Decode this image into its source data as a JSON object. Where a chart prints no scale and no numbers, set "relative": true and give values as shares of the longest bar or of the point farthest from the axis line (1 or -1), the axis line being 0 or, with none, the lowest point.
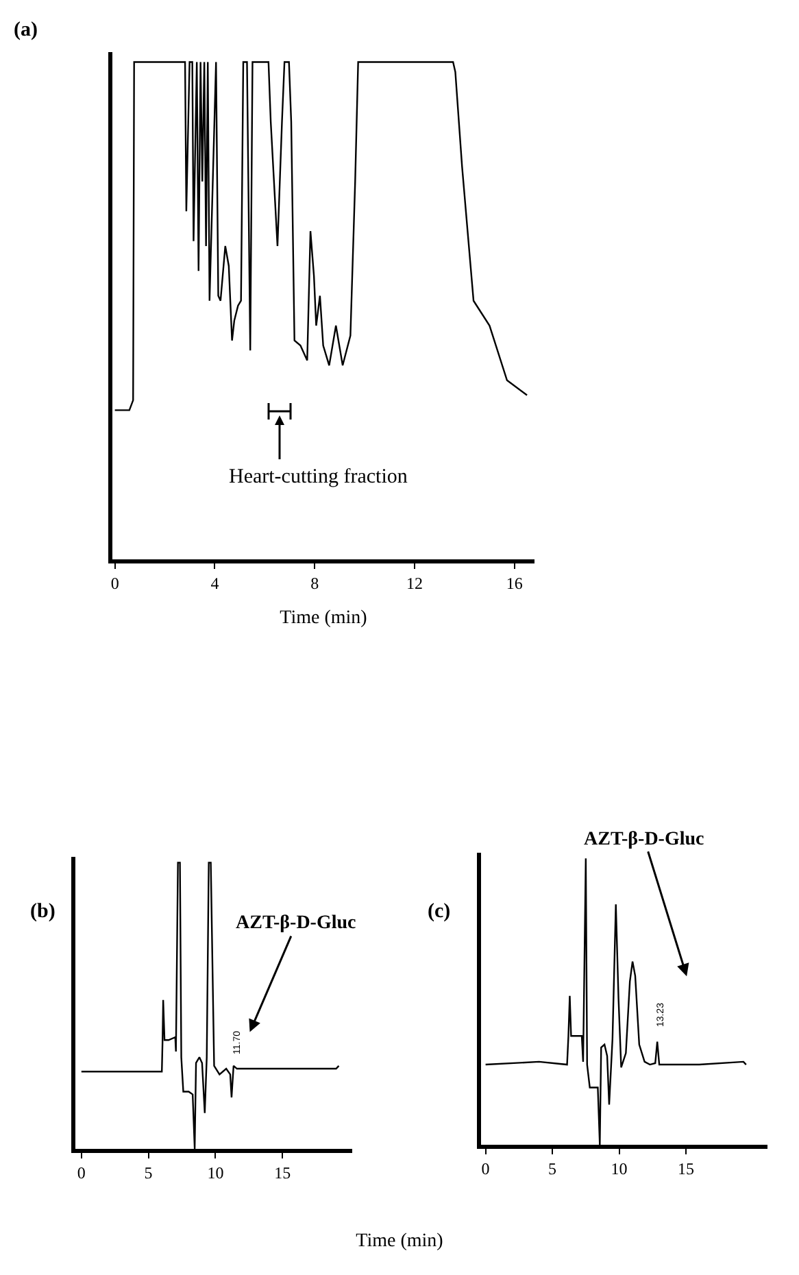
{
  "chart_data": [
    {
      "type": "line",
      "title": "(a)",
      "xlabel": "Time (min)",
      "relative": true,
      "xlim": [
        -0.1,
        16.8
      ],
      "xticks": [
        0,
        4,
        8,
        12,
        16
      ],
      "tick_labels": "x",
      "marker": "none",
      "line_style": "solid",
      "series": [
        {
          "color": "#000000",
          "x": [
            0,
            0.58,
            0.73,
            0.77,
            2.81,
            2.86,
            2.99,
            3.1,
            3.15,
            3.28,
            3.35,
            3.43,
            3.5,
            3.58,
            3.65,
            3.72,
            3.79,
            4.05,
            4.14,
            4.23,
            4.42,
            4.56,
            4.69,
            4.78,
            4.93,
            5.05,
            5.14,
            5.29,
            5.42,
            5.51,
            6.15,
            6.24,
            6.51,
            6.69,
            6.79,
            6.97,
            7.06,
            7.19,
            7.43,
            7.7,
            7.83,
            7.97,
            8.06,
            8.21,
            8.34,
            8.58,
            8.85,
            9.12,
            9.43,
            9.62,
            9.74,
            13.54,
            13.63,
            13.9,
            14.36,
            15.0,
            15.7,
            16.5
          ],
          "values": [
            0.3,
            0.3,
            0.32,
            1,
            1,
            0.7,
            1,
            1,
            0.64,
            1,
            0.58,
            1,
            0.76,
            1,
            0.63,
            1,
            0.52,
            1,
            0.53,
            0.52,
            0.63,
            0.59,
            0.44,
            0.48,
            0.51,
            0.52,
            1,
            1,
            0.42,
            1,
            1,
            0.88,
            0.63,
            0.88,
            1,
            1,
            0.88,
            0.44,
            0.43,
            0.4,
            0.66,
            0.57,
            0.47,
            0.53,
            0.43,
            0.39,
            0.47,
            0.39,
            0.45,
            0.76,
            1,
            1,
            0.98,
            0.79,
            0.52,
            0.47,
            0.36,
            0.33
          ]
        }
      ],
      "annotations": [
        "Heart-cutting fraction"
      ]
    },
    {
      "type": "line",
      "title": "(b)",
      "xlabel": "Time (min)",
      "relative": true,
      "xlim": [
        -0.45,
        20.2
      ],
      "xticks": [
        0,
        5,
        10,
        15
      ],
      "tick_labels": "x",
      "marker": "none",
      "line_style": "solid",
      "series": [
        {
          "color": "#000000",
          "x": [
            0,
            6.0,
            6.05,
            6.1,
            6.2,
            6.5,
            7.0,
            7.05,
            7.2,
            7.35,
            7.45,
            7.6,
            8.0,
            8.3,
            8.45,
            8.55,
            8.8,
            9.0,
            9.2,
            9.35,
            9.5,
            9.65,
            9.9,
            10.3,
            10.8,
            11.1,
            11.2,
            11.35,
            11.6,
            19.0,
            19.2
          ],
          "values": [
            0.27,
            0.27,
            0.37,
            0.52,
            0.38,
            0.38,
            0.39,
            0.34,
            1,
            1,
            0.32,
            0.2,
            0.2,
            0.19,
            0,
            0.3,
            0.32,
            0.3,
            0.125,
            0.32,
            1,
            1,
            0.29,
            0.26,
            0.28,
            0.26,
            0.18,
            0.29,
            0.28,
            0.28,
            0.29
          ]
        }
      ],
      "annotations": [
        "AZT-β-D-Gluc",
        "11.70"
      ]
    },
    {
      "type": "line",
      "title": "(c)",
      "relative": true,
      "xlim": [
        -0.34,
        21.1
      ],
      "xticks": [
        0,
        5,
        10,
        15
      ],
      "tick_labels": "x",
      "marker": "none",
      "line_style": "solid",
      "series": [
        {
          "color": "#000000",
          "x": [
            0,
            4,
            6.1,
            6.2,
            6.3,
            6.4,
            7.2,
            7.3,
            7.5,
            7.6,
            7.8,
            8.4,
            8.55,
            8.65,
            8.9,
            9.1,
            9.25,
            9.5,
            9.75,
            9.95,
            10.15,
            10.5,
            10.8,
            11.0,
            11.2,
            11.5,
            11.9,
            12.3,
            12.7,
            12.85,
            13.0,
            16,
            19.3,
            19.5
          ],
          "values": [
            0.28,
            0.29,
            0.28,
            0.38,
            0.52,
            0.38,
            0.38,
            0.29,
            1,
            0.28,
            0.2,
            0.2,
            0,
            0.34,
            0.35,
            0.31,
            0.14,
            0.37,
            0.84,
            0.51,
            0.27,
            0.32,
            0.57,
            0.64,
            0.59,
            0.35,
            0.29,
            0.28,
            0.285,
            0.36,
            0.28,
            0.28,
            0.29,
            0.28
          ]
        }
      ],
      "annotations": [
        "AZT-β-D-Gluc",
        "13.23"
      ]
    }
  ]
}
